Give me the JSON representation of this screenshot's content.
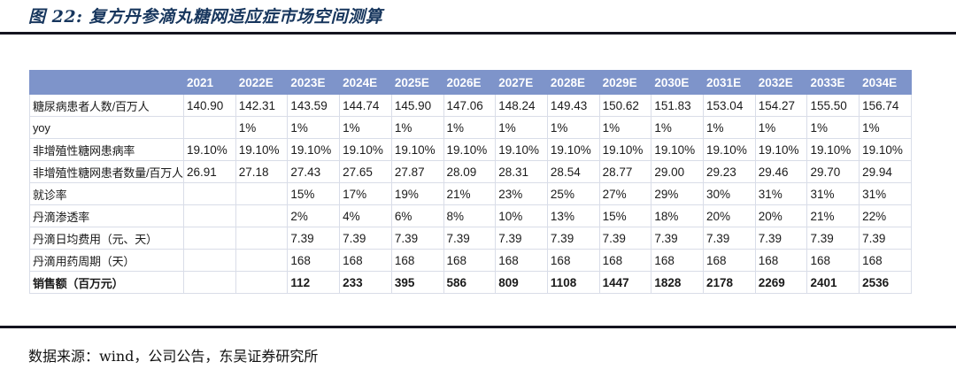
{
  "title": "图 22:  复方丹参滴丸糖网适应症市场空间测算",
  "source": "数据来源：wind，公司公告，东吴证券研究所",
  "colors": {
    "header_bg": "#7e94ca",
    "header_text": "#ffffff",
    "title": "#17365d",
    "grid": "#d9dde8",
    "rule": "#14141f"
  },
  "table": {
    "columns": [
      "",
      "2021",
      "2022E",
      "2023E",
      "2024E",
      "2025E",
      "2026E",
      "2027E",
      "2028E",
      "2029E",
      "2030E",
      "2031E",
      "2032E",
      "2033E",
      "2034E"
    ],
    "rows": [
      {
        "label": "糖尿病患者人数/百万人",
        "bold": false,
        "values": [
          "140.90",
          "142.31",
          "143.59",
          "144.74",
          "145.90",
          "147.06",
          "148.24",
          "149.43",
          "150.62",
          "151.83",
          "153.04",
          "154.27",
          "155.50",
          "156.74"
        ]
      },
      {
        "label": "yoy",
        "bold": false,
        "values": [
          "",
          "1%",
          "1%",
          "1%",
          "1%",
          "1%",
          "1%",
          "1%",
          "1%",
          "1%",
          "1%",
          "1%",
          "1%",
          "1%"
        ]
      },
      {
        "label": "非增殖性糖网患病率",
        "bold": false,
        "values": [
          "19.10%",
          "19.10%",
          "19.10%",
          "19.10%",
          "19.10%",
          "19.10%",
          "19.10%",
          "19.10%",
          "19.10%",
          "19.10%",
          "19.10%",
          "19.10%",
          "19.10%",
          "19.10%"
        ]
      },
      {
        "label": "非增殖性糖网患者数量/百万人",
        "bold": false,
        "values": [
          "26.91",
          "27.18",
          "27.43",
          "27.65",
          "27.87",
          "28.09",
          "28.31",
          "28.54",
          "28.77",
          "29.00",
          "29.23",
          "29.46",
          "29.70",
          "29.94"
        ]
      },
      {
        "label": "就诊率",
        "bold": false,
        "values": [
          "",
          "",
          "15%",
          "17%",
          "19%",
          "21%",
          "23%",
          "25%",
          "27%",
          "29%",
          "30%",
          "31%",
          "31%",
          "31%"
        ]
      },
      {
        "label": "丹滴渗透率",
        "bold": false,
        "values": [
          "",
          "",
          "2%",
          "4%",
          "6%",
          "8%",
          "10%",
          "13%",
          "15%",
          "18%",
          "20%",
          "20%",
          "21%",
          "22%"
        ]
      },
      {
        "label": "丹滴日均费用（元、天）",
        "bold": false,
        "values": [
          "",
          "",
          "7.39",
          "7.39",
          "7.39",
          "7.39",
          "7.39",
          "7.39",
          "7.39",
          "7.39",
          "7.39",
          "7.39",
          "7.39",
          "7.39"
        ]
      },
      {
        "label": "丹滴用药周期（天）",
        "bold": false,
        "values": [
          "",
          "",
          "168",
          "168",
          "168",
          "168",
          "168",
          "168",
          "168",
          "168",
          "168",
          "168",
          "168",
          "168"
        ]
      },
      {
        "label": "销售额（百万元）",
        "bold": true,
        "values": [
          "",
          "",
          "112",
          "233",
          "395",
          "586",
          "809",
          "1108",
          "1447",
          "1828",
          "2178",
          "2269",
          "2401",
          "2536"
        ]
      }
    ]
  }
}
